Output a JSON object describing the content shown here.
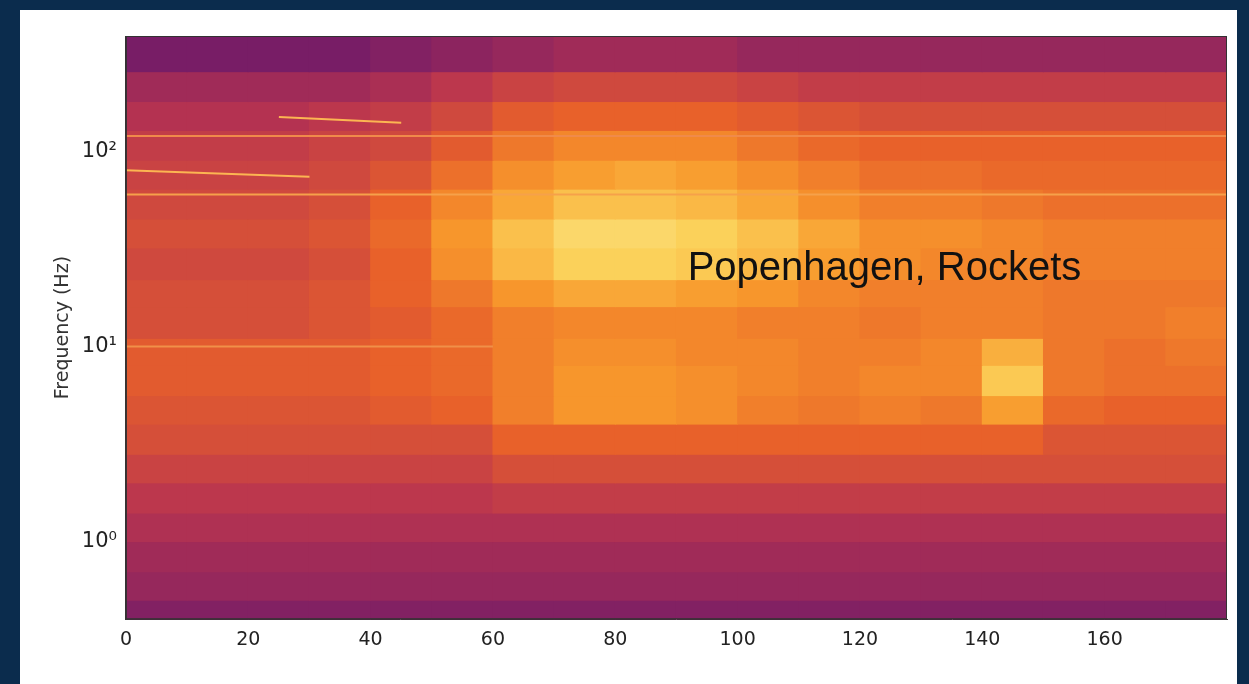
{
  "chart_data": {
    "type": "heatmap",
    "y_label": "Frequency (Hz)",
    "annotations": [
      {
        "text": "Popenhagen, Rockets",
        "x": 124,
        "y": 25
      }
    ],
    "xlim": [
      0,
      180
    ],
    "xticks": [
      0,
      20,
      40,
      60,
      80,
      100,
      120,
      140,
      160
    ],
    "ylim": [
      0.4,
      390
    ],
    "yticks": [
      {
        "value": 1,
        "label": "10⁰"
      },
      {
        "value": 10,
        "label": "10¹"
      },
      {
        "value": 100,
        "label": "10²"
      }
    ],
    "log": "y",
    "grid": false,
    "x_edges": [
      0,
      10,
      20,
      30,
      40,
      50,
      60,
      70,
      80,
      90,
      100,
      110,
      120,
      130,
      140,
      150,
      160,
      170,
      180
    ],
    "y_edges": [
      0.4,
      0.5,
      0.7,
      1,
      1.4,
      2,
      2.8,
      4,
      5.6,
      8,
      11,
      16,
      22,
      32,
      45,
      64,
      90,
      128,
      180,
      256,
      390
    ],
    "color_range": [
      0,
      10
    ],
    "cells": [
      [
        3.4,
        3.4,
        3.4,
        3.4,
        3.4,
        3.4,
        3.4,
        3.4,
        3.4,
        3.4,
        3.4,
        3.4,
        3.4,
        3.4,
        3.4,
        3.4,
        3.4,
        3.4
      ],
      [
        3.8,
        3.8,
        3.8,
        3.8,
        3.8,
        3.8,
        3.8,
        3.8,
        3.8,
        3.8,
        3.8,
        3.8,
        3.8,
        3.8,
        3.8,
        3.8,
        3.8,
        3.8
      ],
      [
        4.0,
        4.0,
        4.0,
        4.0,
        4.0,
        4.0,
        4.0,
        4.0,
        4.0,
        4.0,
        4.0,
        4.0,
        4.0,
        4.0,
        4.0,
        4.0,
        4.0,
        4.0
      ],
      [
        4.3,
        4.3,
        4.3,
        4.3,
        4.3,
        4.3,
        4.3,
        4.3,
        4.3,
        4.3,
        4.3,
        4.3,
        4.3,
        4.3,
        4.3,
        4.3,
        4.3,
        4.3
      ],
      [
        4.6,
        4.6,
        4.6,
        4.6,
        4.6,
        4.6,
        4.8,
        4.8,
        4.8,
        4.8,
        4.8,
        4.8,
        4.8,
        4.8,
        4.8,
        4.8,
        4.8,
        4.8
      ],
      [
        5.0,
        5.0,
        5.0,
        5.0,
        5.0,
        5.0,
        5.4,
        5.4,
        5.4,
        5.4,
        5.4,
        5.4,
        5.4,
        5.4,
        5.4,
        5.4,
        5.4,
        5.4
      ],
      [
        5.4,
        5.4,
        5.4,
        5.4,
        5.4,
        5.4,
        6.0,
        6.0,
        6.0,
        6.0,
        6.0,
        6.0,
        6.0,
        6.0,
        6.0,
        5.6,
        5.6,
        5.6
      ],
      [
        5.6,
        5.6,
        5.6,
        5.6,
        5.8,
        6.0,
        6.8,
        7.4,
        7.4,
        7.2,
        6.8,
        6.6,
        6.8,
        6.6,
        7.6,
        6.2,
        6.0,
        6.0
      ],
      [
        5.8,
        5.8,
        5.8,
        5.8,
        6.0,
        6.2,
        6.8,
        7.4,
        7.4,
        7.2,
        7.0,
        6.8,
        7.0,
        7.0,
        8.6,
        6.6,
        6.4,
        6.4
      ],
      [
        5.8,
        5.8,
        5.8,
        5.8,
        6.0,
        6.2,
        6.8,
        7.2,
        7.2,
        7.0,
        7.0,
        6.8,
        6.8,
        7.0,
        8.0,
        6.6,
        6.4,
        6.6
      ],
      [
        5.4,
        5.4,
        5.4,
        5.6,
        5.8,
        6.2,
        6.8,
        7.0,
        7.0,
        7.0,
        6.8,
        6.8,
        6.6,
        6.8,
        6.8,
        6.6,
        6.6,
        6.8
      ],
      [
        5.4,
        5.4,
        5.4,
        5.6,
        6.0,
        6.6,
        7.4,
        7.8,
        7.8,
        7.6,
        7.4,
        7.0,
        6.8,
        6.8,
        6.8,
        6.6,
        6.6,
        6.6
      ],
      [
        5.2,
        5.2,
        5.2,
        5.4,
        6.0,
        7.2,
        8.2,
        8.8,
        8.8,
        8.6,
        8.2,
        7.6,
        7.2,
        7.0,
        7.0,
        6.8,
        6.8,
        6.8
      ],
      [
        5.4,
        5.4,
        5.4,
        5.6,
        6.2,
        7.4,
        8.4,
        9.0,
        9.0,
        8.8,
        8.4,
        7.8,
        7.2,
        7.2,
        7.0,
        6.8,
        6.8,
        6.8
      ],
      [
        5.2,
        5.2,
        5.2,
        5.4,
        6.0,
        7.0,
        7.8,
        8.4,
        8.4,
        8.2,
        7.8,
        7.2,
        6.8,
        6.8,
        6.6,
        6.4,
        6.4,
        6.4
      ],
      [
        5.0,
        5.0,
        5.0,
        5.2,
        5.6,
        6.4,
        7.2,
        7.6,
        7.8,
        7.6,
        7.2,
        6.8,
        6.4,
        6.4,
        6.2,
        6.2,
        6.2,
        6.2
      ],
      [
        4.8,
        4.8,
        4.8,
        5.0,
        5.2,
        5.8,
        6.6,
        7.0,
        7.0,
        7.0,
        6.6,
        6.2,
        6.0,
        6.0,
        6.0,
        6.0,
        6.0,
        6.0
      ],
      [
        4.4,
        4.4,
        4.4,
        4.6,
        4.8,
        5.2,
        5.8,
        6.0,
        6.0,
        6.0,
        5.8,
        5.6,
        5.4,
        5.4,
        5.4,
        5.4,
        5.4,
        5.4
      ],
      [
        4.0,
        4.0,
        4.0,
        4.0,
        4.2,
        4.6,
        5.0,
        5.2,
        5.2,
        5.2,
        5.0,
        4.8,
        4.8,
        4.8,
        4.8,
        4.8,
        4.8,
        4.8
      ],
      [
        3.2,
        3.2,
        3.2,
        3.2,
        3.4,
        3.6,
        3.8,
        4.0,
        4.0,
        4.0,
        3.8,
        3.8,
        3.8,
        3.8,
        3.8,
        3.8,
        3.8,
        3.8
      ]
    ],
    "lines": [
      {
        "x": [
          0,
          180
        ],
        "y": [
          60,
          60
        ],
        "color": "#f6a14a"
      },
      {
        "x": [
          0,
          180
        ],
        "y": [
          120,
          120
        ],
        "color": "#f08a4a"
      },
      {
        "x": [
          0,
          60
        ],
        "y": [
          10,
          10
        ],
        "color": "#f09048"
      },
      {
        "x": [
          0,
          30
        ],
        "y": [
          80,
          74
        ],
        "color": "#fcb552"
      },
      {
        "x": [
          25,
          45
        ],
        "y": [
          150,
          140
        ],
        "color": "#fcb552"
      }
    ]
  }
}
